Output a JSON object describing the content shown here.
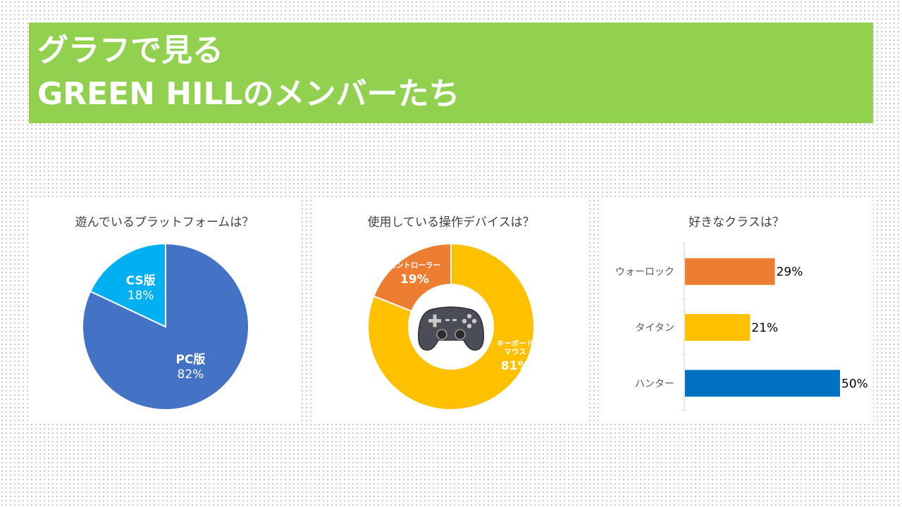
{
  "header": {
    "line1": "グラフで見る",
    "line2": "GREEN HILLのメンバーたち"
  },
  "chart_data": [
    {
      "type": "pie",
      "title": "遊んでいるプラットフォームは？",
      "categories": [
        "PC版",
        "CS版"
      ],
      "values": [
        82,
        18
      ],
      "value_labels": [
        "82%",
        "18%"
      ],
      "colors": [
        "#4472c4",
        "#00b0f0"
      ]
    },
    {
      "type": "pie",
      "subtype": "donut",
      "title": "使用している操作デバイスは？",
      "categories": [
        "キーボードマウス",
        "コントローラー"
      ],
      "category_lines": [
        [
          "キーボード",
          "マウス"
        ],
        [
          "コントローラー"
        ]
      ],
      "values": [
        81,
        19
      ],
      "value_labels": [
        "81%",
        "19%"
      ],
      "colors": [
        "#ffc000",
        "#ed7d31"
      ],
      "center_icon": "gamepad-icon"
    },
    {
      "type": "bar",
      "orientation": "horizontal",
      "title": "好きなクラスは？",
      "categories": [
        "ウォーロック",
        "タイタン",
        "ハンター"
      ],
      "values": [
        29,
        21,
        50
      ],
      "value_labels": [
        "29%",
        "21%",
        "50%"
      ],
      "colors": [
        "#ed7d31",
        "#ffc000",
        "#0070c0"
      ]
    }
  ]
}
